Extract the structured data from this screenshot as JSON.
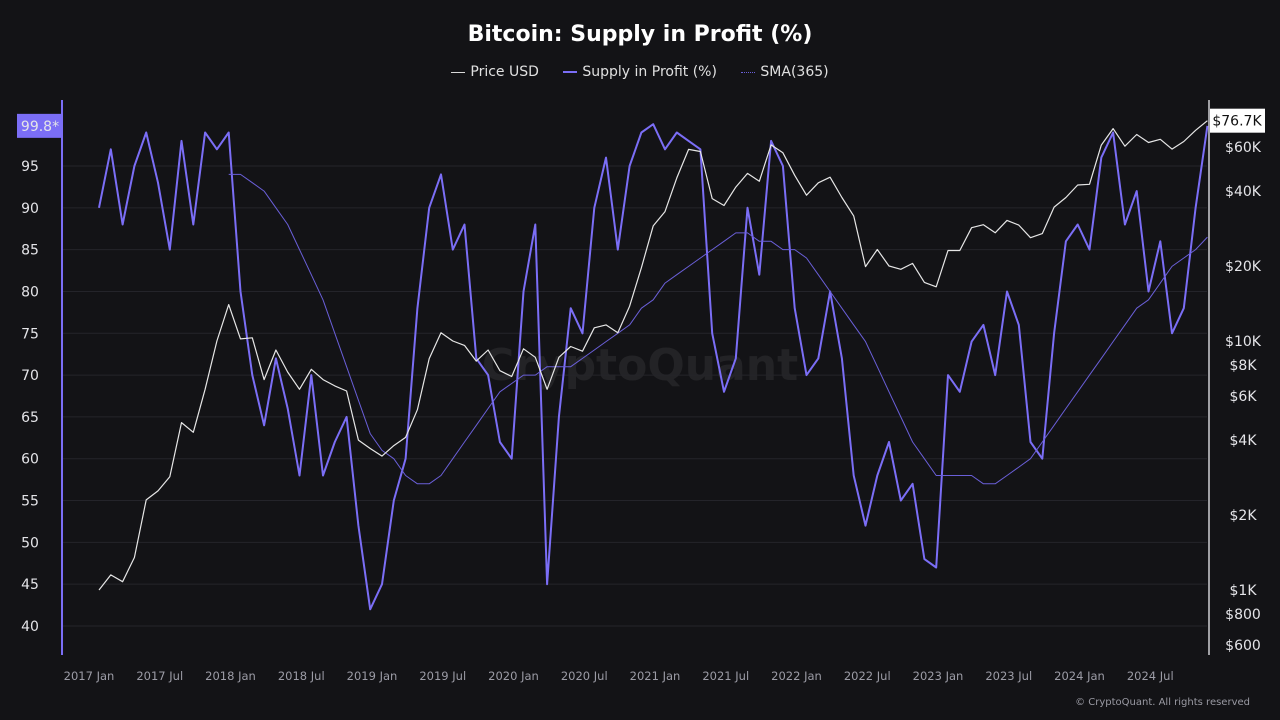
{
  "chart_data": {
    "type": "line",
    "title": "Bitcoin: Supply in Profit (%)",
    "legend": [
      {
        "name": "Price USD",
        "color": "#d9d9d9"
      },
      {
        "name": "Supply in Profit (%)",
        "color": "#7b6ef6"
      },
      {
        "name": "SMA(365)",
        "color": "#6a5fd8"
      }
    ],
    "legend_position": "top",
    "x_tick_labels": [
      "2017 Jan",
      "2017 Jul",
      "2018 Jan",
      "2018 Jul",
      "2019 Jan",
      "2019 Jul",
      "2020 Jan",
      "2020 Jul",
      "2021 Jan",
      "2021 Jul",
      "2022 Jan",
      "2022 Jul",
      "2023 Jan",
      "2023 Jul",
      "2024 Jan",
      "2024 Jul"
    ],
    "left_axis": {
      "ticks": [
        40,
        45,
        50,
        55,
        60,
        65,
        70,
        75,
        80,
        85,
        90,
        95
      ],
      "range": [
        37.5,
        102
      ],
      "current_value_label": "99.8*"
    },
    "right_axis": {
      "scale": "log",
      "ticks": [
        600,
        800,
        1000,
        2000,
        4000,
        6000,
        8000,
        10000,
        20000,
        40000,
        60000
      ],
      "tick_labels": [
        "$600",
        "$800",
        "$1K",
        "$2K",
        "$4K",
        "$6K",
        "$8K",
        "$10K",
        "$20K",
        "$40K",
        "$60K"
      ],
      "current_value_label": "$76.7K"
    },
    "grid": "horizontal",
    "x_start": "2017-01",
    "x_interval": "monthly",
    "series": [
      {
        "name": "Supply in Profit (%)",
        "axis": "left",
        "start": "2017-01",
        "values": [
          90,
          97,
          88,
          95,
          99,
          93,
          85,
          98,
          88,
          99,
          97,
          99,
          80,
          70,
          64,
          72,
          66,
          58,
          70,
          58,
          62,
          65,
          52,
          42,
          45,
          55,
          60,
          78,
          90,
          94,
          85,
          88,
          72,
          70,
          62,
          60,
          80,
          88,
          45,
          65,
          78,
          75,
          90,
          96,
          85,
          95,
          99,
          100,
          97,
          99,
          98,
          97,
          75,
          68,
          72,
          90,
          82,
          98,
          95,
          78,
          70,
          72,
          80,
          72,
          58,
          52,
          58,
          62,
          55,
          57,
          48,
          47,
          70,
          68,
          74,
          76,
          70,
          80,
          76,
          62,
          60,
          75,
          86,
          88,
          85,
          96,
          99,
          88,
          92,
          80,
          86,
          75,
          78,
          90,
          99.8
        ]
      },
      {
        "name": "Price USD",
        "axis": "right",
        "start": "2017-01",
        "values": [
          1000,
          1150,
          1080,
          1350,
          2300,
          2500,
          2850,
          4700,
          4300,
          6400,
          10000,
          14000,
          10200,
          10300,
          7000,
          9200,
          7500,
          6400,
          7700,
          7000,
          6600,
          6300,
          4000,
          3700,
          3450,
          3800,
          4100,
          5300,
          8500,
          10800,
          10000,
          9600,
          8300,
          9200,
          7600,
          7200,
          9300,
          8600,
          6400,
          8600,
          9500,
          9100,
          11300,
          11600,
          10800,
          13800,
          19700,
          29000,
          33100,
          45200,
          58800,
          57700,
          37300,
          35000,
          41500,
          47100,
          43800,
          61300,
          57000,
          46300,
          38500,
          43200,
          45500,
          37700,
          31800,
          19900,
          23300,
          20000,
          19400,
          20500,
          17200,
          16500,
          23100,
          23100,
          28500,
          29300,
          27200,
          30500,
          29200,
          26000,
          27000,
          34500,
          37700,
          42300,
          42600,
          61200,
          71300,
          60600,
          67500,
          62700,
          64600,
          59000,
          63300,
          70200,
          76700
        ]
      },
      {
        "name": "SMA(365)",
        "axis": "left",
        "start": "2017-12",
        "values": [
          94,
          94,
          93,
          92,
          90,
          88,
          85,
          82,
          79,
          75,
          71,
          67,
          63,
          61,
          60,
          58,
          57,
          57,
          58,
          60,
          62,
          64,
          66,
          68,
          69,
          70,
          70,
          71,
          71,
          71,
          72,
          73,
          74,
          75,
          76,
          78,
          79,
          81,
          82,
          83,
          84,
          85,
          86,
          87,
          87,
          86,
          86,
          85,
          85,
          84,
          82,
          80,
          78,
          76,
          74,
          71,
          68,
          65,
          62,
          60,
          58,
          58,
          58,
          58,
          57,
          57,
          58,
          59,
          60,
          62,
          64,
          66,
          68,
          70,
          72,
          74,
          76,
          78,
          79,
          81,
          83,
          84,
          85,
          86.5
        ]
      }
    ]
  },
  "watermark": "CryptoQuant",
  "footer": "© CryptoQuant. All rights reserved"
}
